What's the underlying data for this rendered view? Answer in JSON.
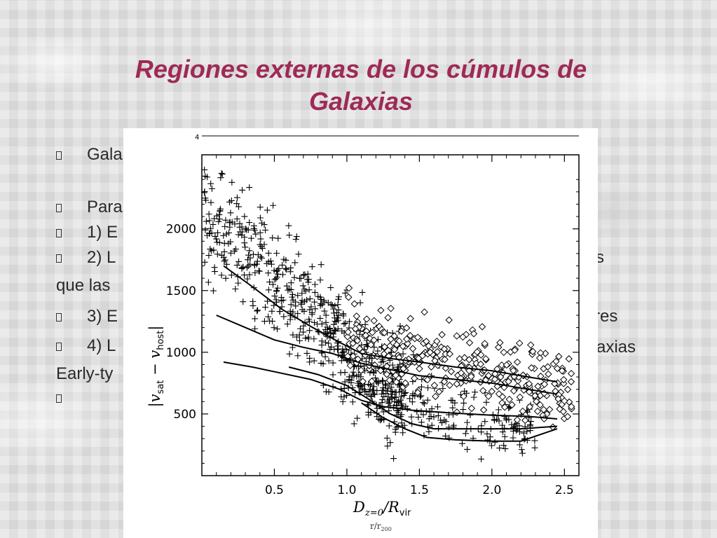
{
  "slide": {
    "title_line1": "Regiones externas de los cúmulos de",
    "title_line2": "Galaxias"
  },
  "bullets": {
    "b1": "Gala",
    "b2": "Para",
    "b3": "1) E",
    "b4": "2) L",
    "b4_right": "s",
    "b4_cont": "que las",
    "b5": "3) E",
    "b5_right": "res",
    "b6": "4) L",
    "b6_right": "axias",
    "b6_cont": "Early-ty"
  },
  "figure": {
    "top_tick_label": "4",
    "bottom_label": "r/r",
    "bottom_label_sub": "200"
  },
  "chart_data": {
    "type": "scatter",
    "xlabel": "D_{z=0}/R_vir",
    "xlabel_parts": {
      "main": "D",
      "sub": "z=0",
      "rest": "/R",
      "sub2": "vir"
    },
    "ylabel": "|v_sat − v_host|",
    "ylabel_parts": {
      "a": "v",
      "a_sub": "sat",
      "op": " − ",
      "b": "v",
      "b_sub": "host"
    },
    "xlim": [
      0.0,
      2.6
    ],
    "ylim": [
      0,
      2600
    ],
    "xticks": [
      0.5,
      1.0,
      1.5,
      2.0,
      2.5
    ],
    "xtick_labels": [
      "0.5",
      "1.0",
      "1.5",
      "2.0",
      "2.5"
    ],
    "yticks": [
      500,
      1000,
      1500,
      2000
    ],
    "ytick_labels": [
      "500",
      "1000",
      "1500",
      "2000"
    ],
    "grid": false,
    "series": [
      {
        "marker": "plus",
        "x_range": [
          0.0,
          1.4
        ],
        "trend_curve": [
          [
            0.0,
            2100
          ],
          [
            0.3,
            1800
          ],
          [
            0.6,
            1450
          ],
          [
            0.9,
            1150
          ],
          [
            1.2,
            850
          ],
          [
            1.4,
            650
          ]
        ],
        "spread": 420,
        "count": 560
      },
      {
        "marker": "plus",
        "x_range": [
          0.9,
          2.3
        ],
        "trend_curve": [
          [
            0.9,
            850
          ],
          [
            1.3,
            700
          ],
          [
            1.6,
            550
          ],
          [
            2.0,
            450
          ],
          [
            2.3,
            420
          ]
        ],
        "spread": 260,
        "count": 240
      },
      {
        "marker": "diamond",
        "x_range": [
          1.0,
          2.55
        ],
        "trend_curve": [
          [
            1.0,
            1150
          ],
          [
            1.5,
            960
          ],
          [
            2.0,
            850
          ],
          [
            2.5,
            700
          ]
        ],
        "spread": 300,
        "count": 330
      }
    ],
    "lines": [
      {
        "name": "",
        "x": [
          0.15,
          0.35,
          0.55,
          0.75,
          0.95,
          1.1,
          1.3,
          1.5,
          1.75,
          2.0,
          2.25,
          2.45
        ],
        "y": [
          1700,
          1530,
          1350,
          1210,
          1080,
          990,
          950,
          920,
          880,
          850,
          800,
          760
        ]
      },
      {
        "name": "",
        "x": [
          0.1,
          0.3,
          0.5,
          0.7,
          0.9,
          1.1,
          1.3,
          1.5,
          1.75,
          2.0,
          2.25,
          2.45
        ],
        "y": [
          1300,
          1200,
          1100,
          1040,
          990,
          910,
          860,
          810,
          780,
          750,
          700,
          660
        ]
      },
      {
        "name": "",
        "x": [
          0.15,
          0.35,
          0.55,
          0.75,
          0.95,
          1.1,
          1.25,
          1.45,
          1.7,
          2.0,
          2.25,
          2.45
        ],
        "y": [
          920,
          880,
          830,
          780,
          700,
          610,
          560,
          530,
          510,
          490,
          480,
          460
        ]
      },
      {
        "name": "",
        "x": [
          0.6,
          0.8,
          1.0,
          1.15,
          1.3,
          1.45,
          1.6,
          1.8,
          2.0,
          2.2,
          2.45
        ],
        "y": [
          880,
          820,
          730,
          620,
          500,
          420,
          380,
          380,
          380,
          380,
          400
        ]
      },
      {
        "name": "",
        "x": [
          1.1,
          1.25,
          1.4,
          1.55,
          1.75,
          2.0,
          2.2,
          2.45
        ],
        "y": [
          590,
          470,
          380,
          310,
          290,
          280,
          280,
          380
        ]
      }
    ]
  }
}
